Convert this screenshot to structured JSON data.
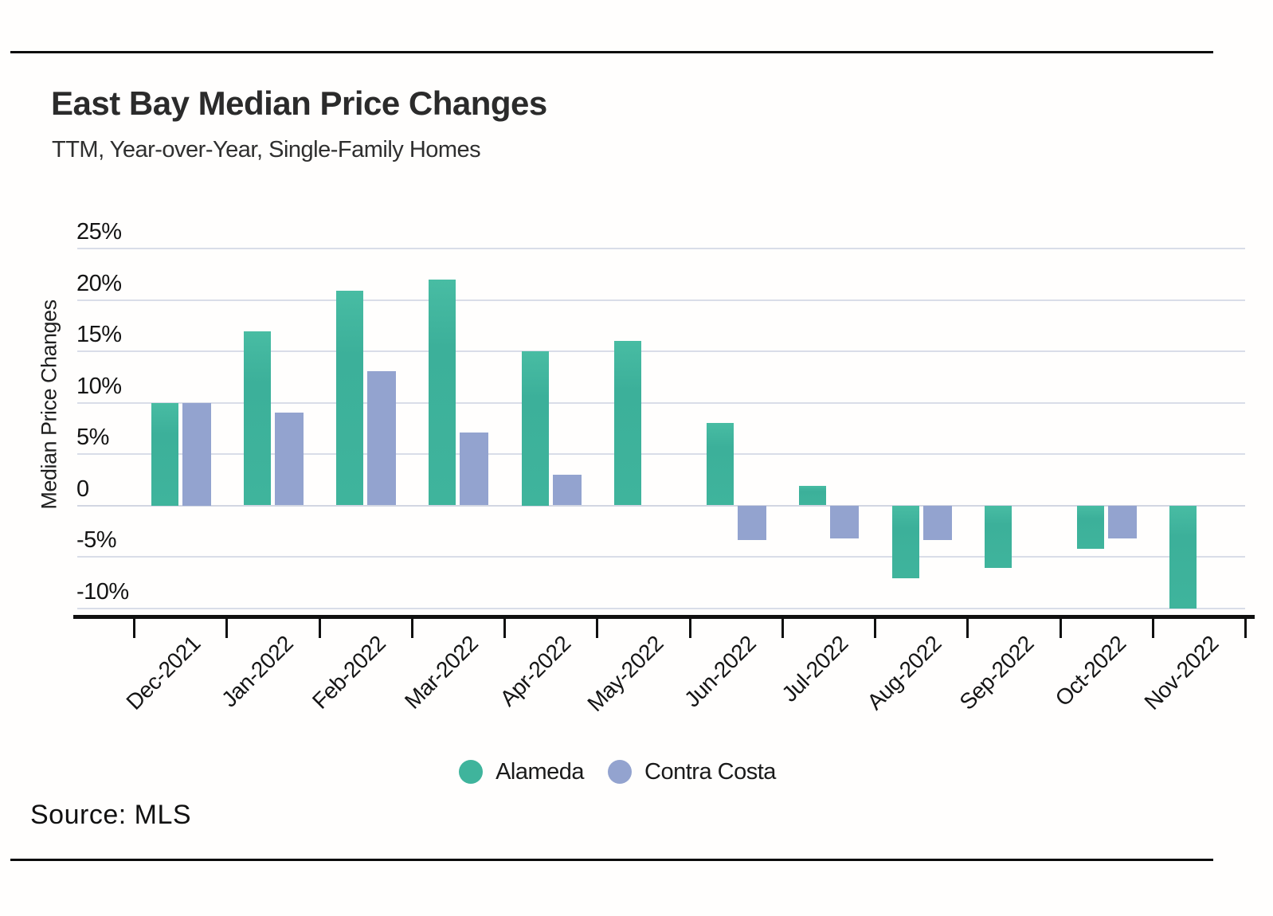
{
  "header": {
    "title": "East Bay Median Price Changes",
    "subtitle": "TTM, Year-over-Year, Single-Family Homes"
  },
  "footer": {
    "source": "Source: MLS"
  },
  "legend": {
    "items": [
      {
        "label": "Alameda",
        "color": "#3fb49c"
      },
      {
        "label": "Contra Costa",
        "color": "#93a3cf"
      }
    ]
  },
  "chart_data": {
    "type": "bar",
    "title": "East Bay Median Price Changes",
    "subtitle": "TTM, Year-over-Year, Single-Family Homes",
    "xlabel": "",
    "ylabel": "Median Price Changes",
    "categories": [
      "Dec-2021",
      "Jan-2022",
      "Feb-2022",
      "Mar-2022",
      "Apr-2022",
      "May-2022",
      "Jun-2022",
      "Jul-2022",
      "Aug-2022",
      "Sep-2022",
      "Oct-2022",
      "Nov-2022"
    ],
    "series": [
      {
        "name": "Alameda",
        "color": "#3fb49c",
        "values": [
          10,
          16.9,
          20.9,
          22,
          15,
          16,
          8,
          1.9,
          -7.1,
          -6.1,
          -4.2,
          -10
        ]
      },
      {
        "name": "Contra Costa",
        "color": "#93a3cf",
        "values": [
          10,
          9,
          13.1,
          7.1,
          3,
          null,
          -3.4,
          -3.2,
          -3.4,
          null,
          -3.2,
          null
        ]
      }
    ],
    "y_ticks": [
      25,
      20,
      15,
      10,
      5,
      0,
      -5,
      -10
    ],
    "y_tick_labels": [
      "25%",
      "20%",
      "15%",
      "10%",
      "5%",
      "0",
      "-5%",
      "-10%"
    ],
    "ylim": [
      -10,
      25
    ],
    "grid": true,
    "legend_position": "bottom",
    "value_unit": "percent"
  }
}
